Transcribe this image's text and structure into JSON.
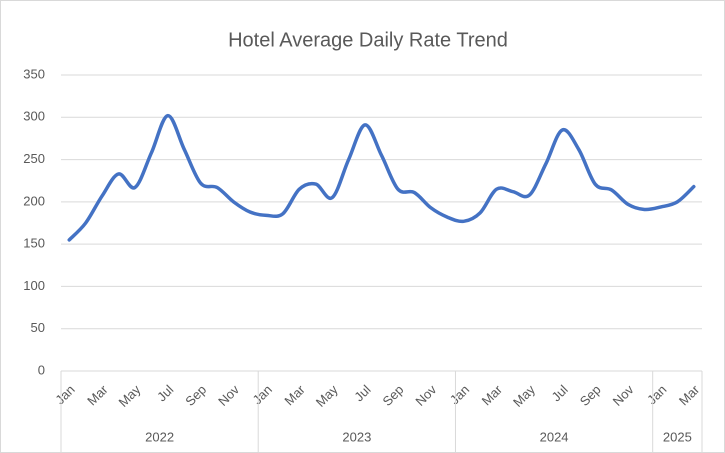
{
  "chart_data": {
    "type": "line",
    "title": "Hotel Average Daily Rate Trend",
    "categories": [
      "Jan",
      null,
      "Mar",
      null,
      "May",
      null,
      "Jul",
      null,
      "Sep",
      null,
      "Nov",
      null,
      "Jan",
      null,
      "Mar",
      null,
      "May",
      null,
      "Jul",
      null,
      "Sep",
      null,
      "Nov",
      null,
      "Jan",
      null,
      "Mar",
      null,
      "May",
      null,
      "Jul",
      null,
      "Sep",
      null,
      "Nov",
      null,
      "Jan",
      null,
      "Mar"
    ],
    "groups": [
      {
        "label": "2022",
        "span": 12
      },
      {
        "label": "2023",
        "span": 12
      },
      {
        "label": "2024",
        "span": 12
      },
      {
        "label": "2025",
        "span": 3
      }
    ],
    "values": [
      155,
      175,
      207,
      233,
      217,
      258,
      302,
      262,
      222,
      217,
      200,
      188,
      184,
      186,
      215,
      221,
      205,
      250,
      291,
      255,
      215,
      211,
      193,
      182,
      177,
      187,
      215,
      212,
      208,
      245,
      285,
      262,
      221,
      214,
      197,
      191,
      194,
      200,
      218
    ],
    "color": "#4472c4",
    "ylim": [
      0,
      350
    ],
    "yticks": [
      0,
      50,
      100,
      150,
      200,
      250,
      300,
      350
    ],
    "grid": true
  }
}
